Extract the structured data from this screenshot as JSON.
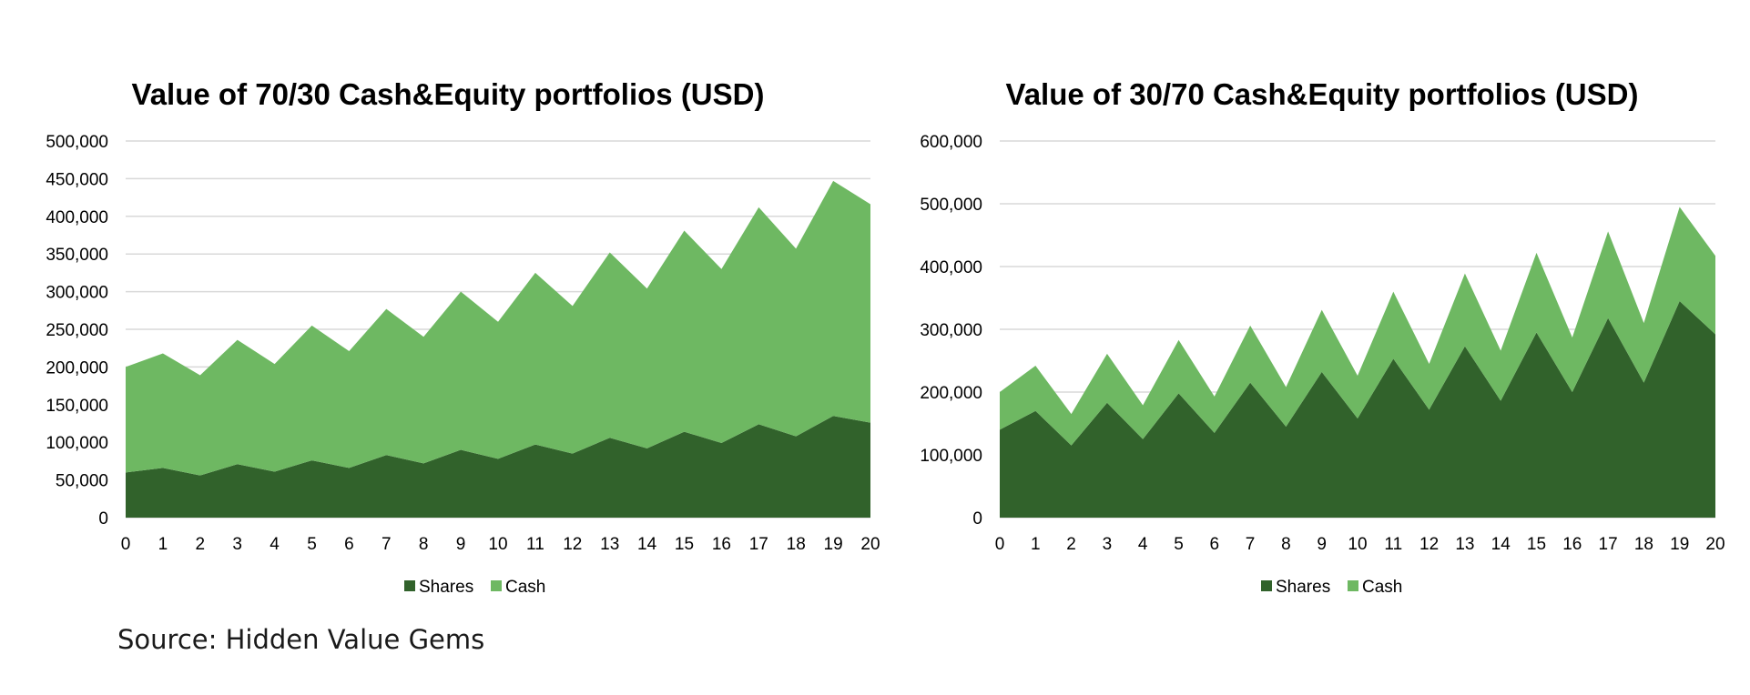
{
  "chart_data": [
    {
      "type": "area",
      "stacked": true,
      "title": "Value of 70/30 Cash&Equity portfolios (USD)",
      "categories": [
        "0",
        "1",
        "2",
        "3",
        "4",
        "5",
        "6",
        "7",
        "8",
        "9",
        "10",
        "11",
        "12",
        "13",
        "14",
        "15",
        "16",
        "17",
        "18",
        "19",
        "20"
      ],
      "ylim": [
        0,
        500000
      ],
      "yticks": [
        0,
        50000,
        100000,
        150000,
        200000,
        250000,
        300000,
        350000,
        400000,
        450000,
        500000
      ],
      "ytick_labels": [
        "0",
        "50,000",
        "100,000",
        "150,000",
        "200,000",
        "250,000",
        "300,000",
        "350,000",
        "400,000",
        "450,000",
        "500,000"
      ],
      "grid": true,
      "legend_position": "bottom",
      "series": [
        {
          "name": "Shares",
          "color": "#31622b",
          "values": [
            60000,
            66000,
            56000,
            71000,
            61000,
            76000,
            66000,
            83000,
            72000,
            90000,
            78000,
            97000,
            85000,
            106000,
            92000,
            114000,
            99000,
            124000,
            108000,
            135000,
            126000
          ]
        },
        {
          "name": "Cash",
          "color": "#6eb862",
          "values": [
            140000,
            152000,
            133000,
            165000,
            143000,
            179000,
            155000,
            194000,
            168000,
            210000,
            182000,
            228000,
            196000,
            246000,
            212000,
            267000,
            231000,
            288000,
            249000,
            312000,
            290000
          ]
        }
      ]
    },
    {
      "type": "area",
      "stacked": true,
      "title": "Value of 30/70 Cash&Equity portfolios (USD)",
      "categories": [
        "0",
        "1",
        "2",
        "3",
        "4",
        "5",
        "6",
        "7",
        "8",
        "9",
        "10",
        "11",
        "12",
        "13",
        "14",
        "15",
        "16",
        "17",
        "18",
        "19",
        "20"
      ],
      "ylim": [
        0,
        600000
      ],
      "yticks": [
        0,
        100000,
        200000,
        300000,
        400000,
        500000,
        600000
      ],
      "ytick_labels": [
        "0",
        "100,000",
        "200,000",
        "300,000",
        "400,000",
        "500,000",
        "600,000"
      ],
      "grid": true,
      "legend_position": "bottom",
      "series": [
        {
          "name": "Shares",
          "color": "#31622b",
          "values": [
            140000,
            170000,
            115000,
            183000,
            125000,
            198000,
            135000,
            215000,
            145000,
            232000,
            158000,
            253000,
            172000,
            273000,
            186000,
            295000,
            200000,
            318000,
            215000,
            345000,
            292000
          ]
        },
        {
          "name": "Cash",
          "color": "#6eb862",
          "values": [
            60000,
            72000,
            50000,
            78000,
            54000,
            85000,
            58000,
            91000,
            63000,
            99000,
            68000,
            107000,
            73000,
            116000,
            80000,
            127000,
            87000,
            138000,
            95000,
            150000,
            125000
          ]
        }
      ]
    }
  ],
  "source": "Source: Hidden Value Gems"
}
